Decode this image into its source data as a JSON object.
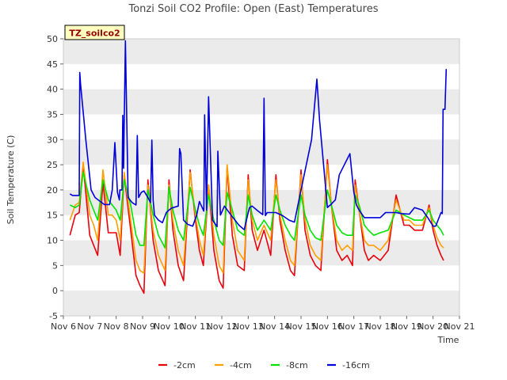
{
  "chart_data": {
    "type": "line",
    "title": "Tonzi Soil CO2 Profile: Open (East) Temperatures",
    "xlabel": "Time",
    "ylabel": "Soil Temperature (C)",
    "xlim": [
      6,
      21
    ],
    "ylim": [
      -5,
      50
    ],
    "x_ticks": [
      6,
      7,
      8,
      9,
      10,
      11,
      12,
      13,
      14,
      15,
      16,
      17,
      18,
      19,
      20,
      21
    ],
    "x_tick_labels": [
      "Nov 6",
      "Nov 7",
      "Nov 8",
      "Nov 9",
      "Nov 10",
      "Nov 11",
      "Nov 12",
      "Nov 13",
      "Nov 14",
      "Nov 15",
      "Nov 16",
      "Nov 17",
      "Nov 18",
      "Nov 19",
      "Nov 20",
      "Nov 21"
    ],
    "y_ticks": [
      -5,
      0,
      5,
      10,
      15,
      20,
      25,
      30,
      35,
      40,
      45,
      50
    ],
    "grid": "horizontal bands",
    "band_color": "#ebebeb",
    "site_label": "TZ_soilco2",
    "legend_position": "bottom-center",
    "series": [
      {
        "name": "-2cm",
        "color": "#e8000b",
        "x": [
          6.25,
          6.45,
          6.6,
          6.75,
          7.0,
          7.15,
          7.3,
          7.5,
          7.7,
          7.85,
          8.0,
          8.15,
          8.3,
          8.55,
          8.75,
          8.9,
          9.05,
          9.2,
          9.4,
          9.6,
          9.85,
          10.0,
          10.15,
          10.35,
          10.55,
          10.8,
          11.0,
          11.15,
          11.3,
          11.5,
          11.7,
          11.9,
          12.05,
          12.2,
          12.4,
          12.6,
          12.85,
          13.0,
          13.15,
          13.35,
          13.6,
          13.85,
          14.05,
          14.2,
          14.4,
          14.6,
          14.75,
          15.0,
          15.15,
          15.35,
          15.55,
          15.75,
          16.0,
          16.15,
          16.35,
          16.55,
          16.75,
          16.95,
          17.05,
          17.2,
          17.4,
          17.55,
          17.75,
          18.0,
          18.3,
          18.6,
          18.9,
          19.1,
          19.3,
          19.6,
          19.85,
          20.0,
          20.15,
          20.3,
          20.4
        ],
        "y": [
          11,
          15,
          15.5,
          25,
          11,
          9,
          7,
          21.5,
          11.5,
          11.5,
          11.5,
          7,
          23,
          12,
          3,
          1,
          -0.5,
          22,
          10,
          4,
          1,
          22,
          12,
          5,
          2,
          24,
          14,
          8,
          5,
          21,
          8,
          2,
          0.5,
          24.5,
          11,
          5,
          4,
          23,
          12,
          8,
          12,
          7,
          23,
          14,
          8,
          4,
          3,
          24,
          12,
          7,
          5,
          4,
          26,
          17,
          8,
          6,
          7,
          5,
          22,
          16,
          8,
          6,
          7,
          6,
          8,
          19,
          13,
          13,
          12,
          12,
          17,
          12,
          9,
          7,
          6
        ]
      },
      {
        "name": "-4cm",
        "color": "#ff9e00",
        "x": [
          6.25,
          6.45,
          6.6,
          6.75,
          7.0,
          7.15,
          7.3,
          7.5,
          7.7,
          7.85,
          8.0,
          8.15,
          8.3,
          8.55,
          8.75,
          8.9,
          9.05,
          9.2,
          9.4,
          9.6,
          9.85,
          10.0,
          10.15,
          10.35,
          10.55,
          10.8,
          11.0,
          11.15,
          11.3,
          11.5,
          11.7,
          11.9,
          12.05,
          12.2,
          12.4,
          12.6,
          12.85,
          13.0,
          13.15,
          13.35,
          13.6,
          13.85,
          14.05,
          14.2,
          14.4,
          14.6,
          14.75,
          15.0,
          15.15,
          15.35,
          15.55,
          15.75,
          16.0,
          16.15,
          16.35,
          16.55,
          16.75,
          16.95,
          17.05,
          17.2,
          17.4,
          17.55,
          17.75,
          18.0,
          18.3,
          18.6,
          18.9,
          19.1,
          19.3,
          19.6,
          19.85,
          20.0,
          20.15,
          20.3,
          20.4
        ],
        "y": [
          14,
          17,
          17.5,
          25.5,
          15,
          13,
          10,
          24,
          15,
          15,
          14,
          10,
          23.5,
          14,
          6,
          4,
          3.5,
          21,
          12,
          7,
          4,
          21,
          14,
          8,
          5,
          23.5,
          15,
          10,
          7,
          21,
          11,
          5,
          3.5,
          25,
          14,
          8,
          6,
          22,
          14,
          10,
          13,
          10,
          22,
          15,
          10,
          6,
          5,
          23,
          14,
          9,
          7,
          6,
          25,
          17,
          10,
          8,
          9,
          8,
          21,
          16,
          10,
          9,
          9,
          8,
          10,
          18,
          14,
          14,
          13,
          13,
          16.5,
          13,
          10.5,
          9,
          8.5
        ]
      },
      {
        "name": "-8cm",
        "color": "#00e400",
        "x": [
          6.25,
          6.45,
          6.6,
          6.75,
          7.0,
          7.15,
          7.3,
          7.5,
          7.7,
          7.85,
          8.0,
          8.15,
          8.3,
          8.55,
          8.75,
          8.9,
          9.05,
          9.2,
          9.4,
          9.6,
          9.85,
          10.0,
          10.15,
          10.35,
          10.55,
          10.8,
          11.0,
          11.15,
          11.3,
          11.5,
          11.7,
          11.9,
          12.05,
          12.2,
          12.4,
          12.6,
          12.85,
          13.0,
          13.15,
          13.35,
          13.6,
          13.85,
          14.05,
          14.2,
          14.4,
          14.6,
          14.75,
          15.0,
          15.15,
          15.35,
          15.55,
          15.75,
          16.0,
          16.15,
          16.35,
          16.55,
          16.75,
          16.95,
          17.05,
          17.2,
          17.4,
          17.55,
          17.75,
          18.0,
          18.3,
          18.6,
          18.9,
          19.1,
          19.3,
          19.6,
          19.85,
          20.0,
          20.15,
          20.3,
          20.4
        ],
        "y": [
          17,
          16.5,
          17,
          23.5,
          18,
          16,
          14,
          22,
          18,
          17,
          16,
          14,
          22,
          17,
          11,
          9,
          9,
          20,
          15,
          11,
          8.5,
          20.5,
          16,
          12,
          10,
          20.5,
          16,
          13,
          11,
          19,
          14,
          10,
          9,
          19.5,
          16,
          12,
          11,
          19,
          15,
          12,
          14,
          12,
          19,
          16,
          13,
          11,
          10,
          19,
          15,
          12,
          10.5,
          10,
          20,
          17,
          13,
          11.5,
          11,
          11,
          19,
          17,
          13,
          12,
          11,
          11.5,
          12,
          16,
          15,
          14.5,
          14,
          14,
          16,
          14,
          13,
          12,
          11
        ]
      },
      {
        "name": "-16cm",
        "color": "#0000d8",
        "x": [
          6.25,
          6.35,
          6.6,
          6.62,
          6.65,
          6.85,
          7.05,
          7.2,
          7.45,
          7.55,
          7.75,
          7.85,
          7.95,
          8.05,
          8.12,
          8.14,
          8.22,
          8.25,
          8.28,
          8.35,
          8.45,
          8.6,
          8.75,
          8.8,
          8.85,
          8.95,
          9.05,
          9.2,
          9.3,
          9.35,
          9.4,
          9.45,
          9.6,
          9.75,
          9.9,
          10.0,
          10.1,
          10.35,
          10.4,
          10.45,
          10.55,
          10.7,
          10.9,
          11.05,
          11.15,
          11.3,
          11.32,
          11.35,
          11.42,
          11.5,
          11.65,
          11.8,
          11.82,
          11.85,
          11.95,
          12.1,
          12.35,
          12.65,
          12.85,
          13.0,
          13.05,
          13.15,
          13.35,
          13.55,
          13.6,
          13.65,
          13.72,
          13.85,
          14.05,
          14.3,
          14.55,
          14.75,
          15.0,
          15.4,
          15.6,
          15.65,
          15.7,
          16.0,
          16.1,
          16.12,
          16.2,
          16.3,
          16.45,
          16.85,
          16.95,
          17.0,
          17.1,
          17.2,
          17.4,
          17.6,
          18.0,
          18.2,
          18.6,
          18.8,
          19.1,
          19.3,
          19.6,
          19.8,
          20.0,
          20.1,
          20.3,
          20.35,
          20.38,
          20.45,
          20.5
        ],
        "y": [
          19.2,
          18.9,
          18.9,
          43.3,
          41,
          30,
          20,
          18.5,
          17.5,
          17.1,
          17.1,
          20,
          29.4,
          19.5,
          18,
          20,
          20,
          34.8,
          24.3,
          49.6,
          18.5,
          17.5,
          17,
          30.8,
          18.5,
          19.5,
          19.8,
          18.5,
          17.5,
          29.9,
          18,
          15,
          14,
          13.5,
          15.5,
          16,
          16.4,
          16.8,
          28.2,
          27.2,
          14,
          13.2,
          12.8,
          15,
          17.7,
          16,
          15.8,
          34.9,
          16,
          38.5,
          14,
          12.9,
          12.7,
          27.7,
          15,
          16.8,
          15,
          13,
          12.1,
          15.5,
          16.5,
          16.8,
          15.9,
          15.1,
          38.2,
          14.9,
          15.5,
          15.5,
          15.5,
          14.9,
          14,
          13.6,
          20,
          30,
          42,
          38,
          34,
          16.5,
          17,
          17,
          17.5,
          18,
          23,
          27.2,
          22,
          19.5,
          17,
          16,
          14.5,
          14.5,
          14.5,
          15.5,
          15.5,
          15.3,
          15.2,
          16.5,
          16,
          14.5,
          12.8,
          12.8,
          15.5,
          15.3,
          36,
          36,
          44
        ]
      }
    ]
  }
}
